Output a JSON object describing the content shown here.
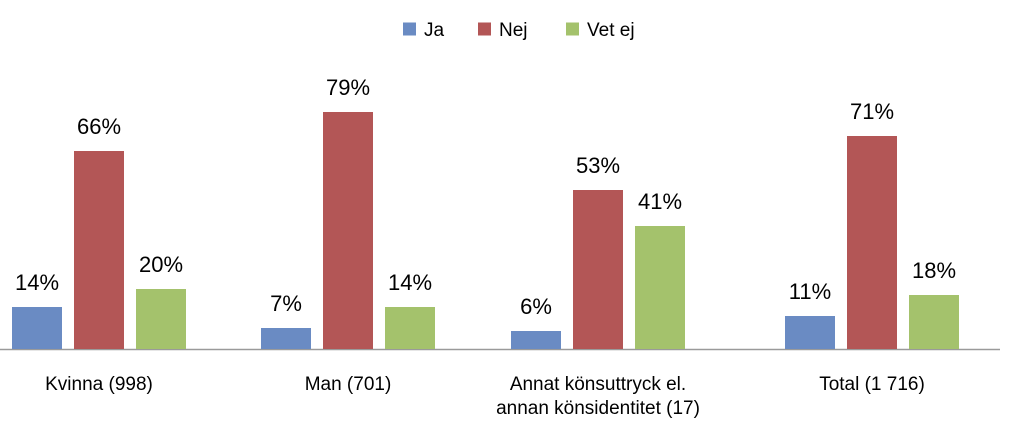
{
  "chart_data": {
    "type": "bar",
    "categories": [
      [
        "Kvinna (998)"
      ],
      [
        "Man (701)"
      ],
      [
        "Annat könsuttryck el.",
        "annan könsidentitet (17)"
      ],
      [
        "Total (1 716)"
      ]
    ],
    "series": [
      {
        "name": "Ja",
        "color": "#6A8BC3",
        "values": [
          14,
          7,
          6,
          11
        ],
        "labels": [
          "14%",
          "7%",
          "6%",
          "11%"
        ]
      },
      {
        "name": "Nej",
        "color": "#B35656",
        "values": [
          66,
          79,
          53,
          71
        ],
        "labels": [
          "66%",
          "79%",
          "53%",
          "71%"
        ]
      },
      {
        "name": "Vet ej",
        "color": "#A4C26C",
        "values": [
          20,
          14,
          41,
          18
        ],
        "labels": [
          "20%",
          "14%",
          "41%",
          "18%"
        ]
      }
    ],
    "ylim": [
      0,
      100
    ],
    "legend_position": "top-center",
    "grid": false
  }
}
